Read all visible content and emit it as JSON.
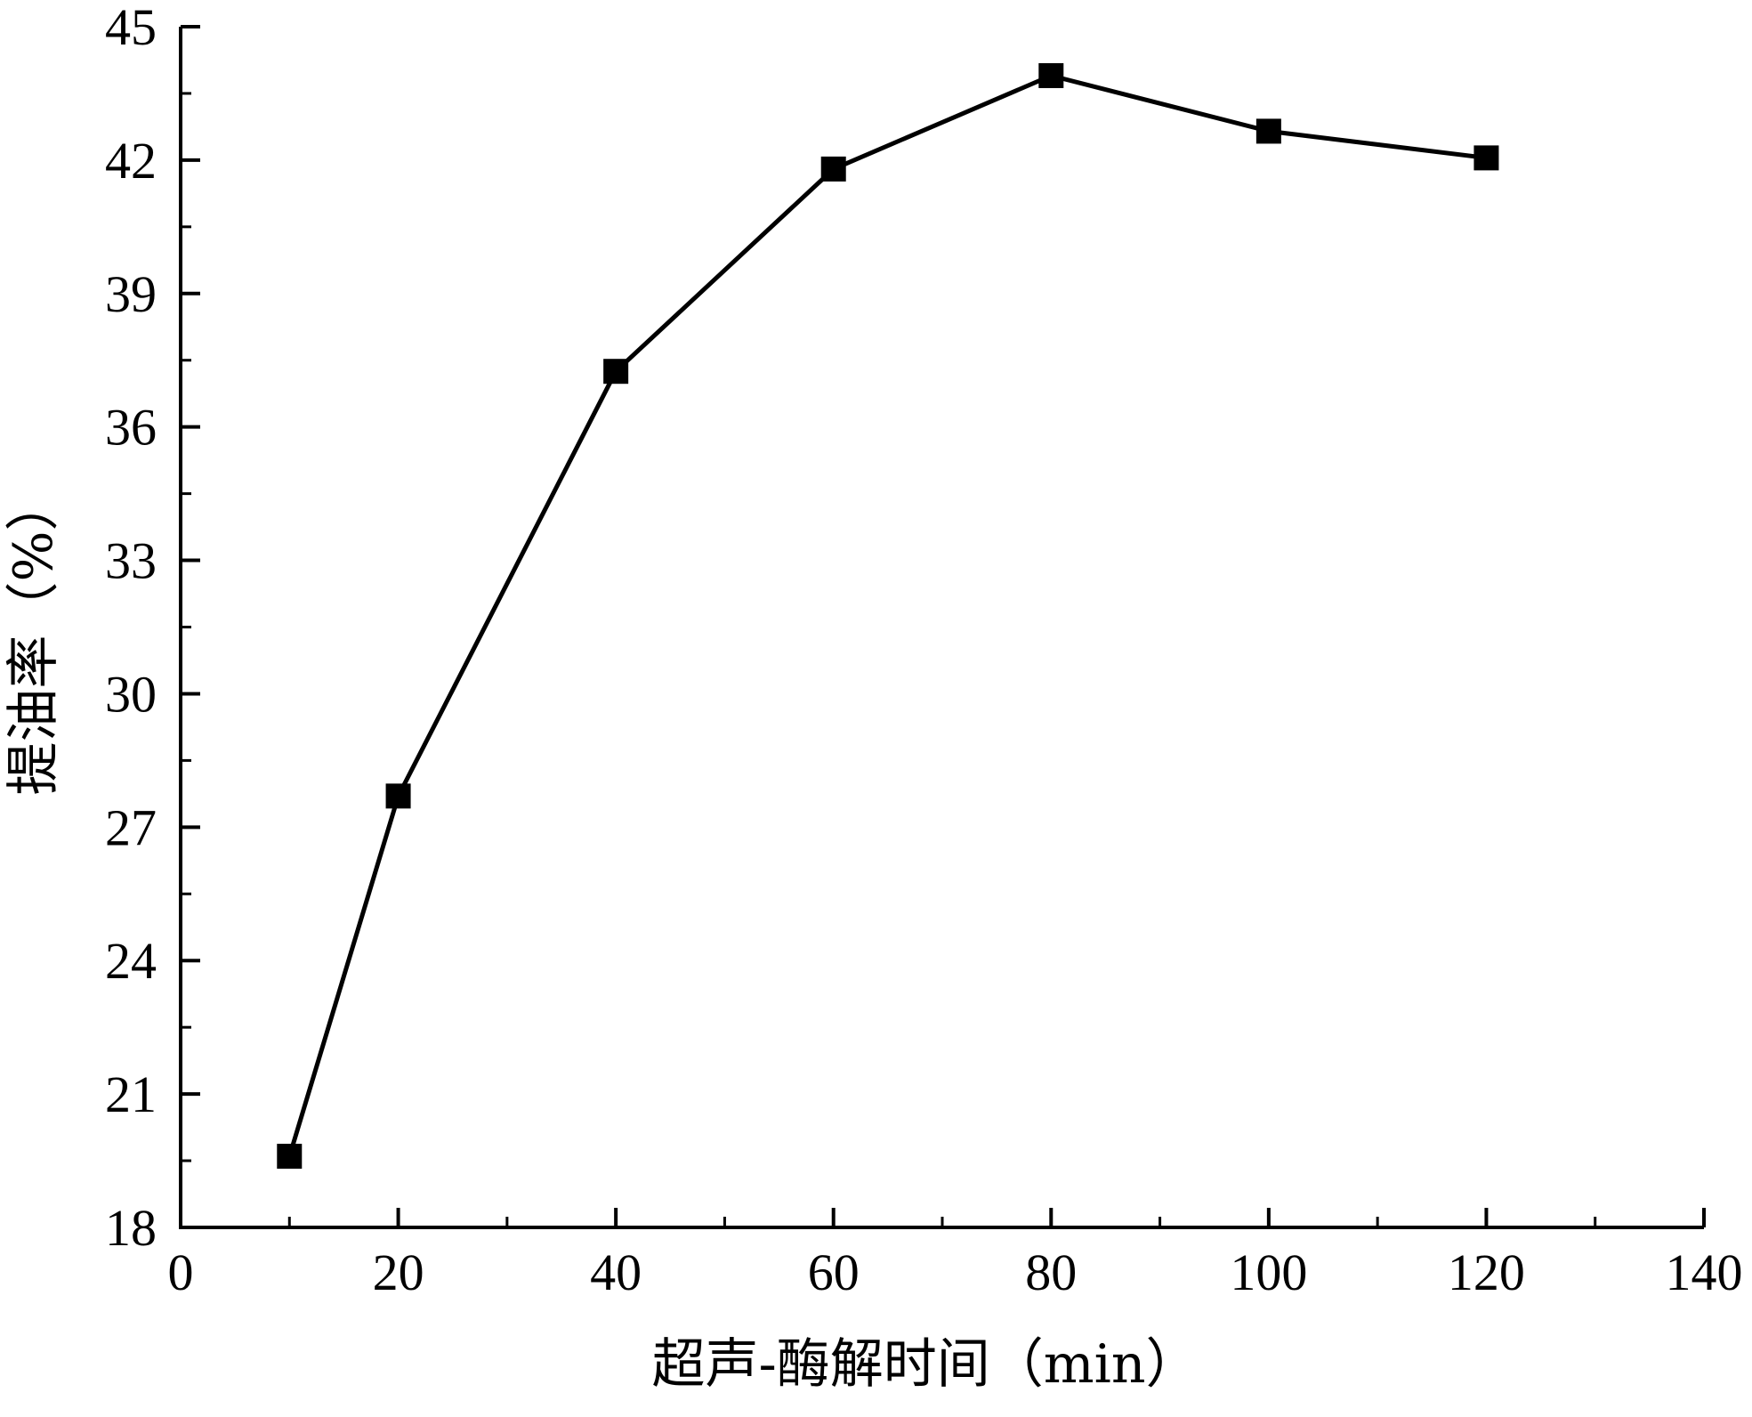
{
  "chart_data": {
    "type": "line",
    "title": "",
    "xlabel": "超声-酶解时间（min）",
    "ylabel": "提油率（%）",
    "xlim": [
      0,
      140
    ],
    "ylim": [
      18,
      45
    ],
    "x_ticks": [
      "0",
      "20",
      "40",
      "60",
      "80",
      "100",
      "120",
      "140"
    ],
    "y_ticks": [
      "18",
      "21",
      "24",
      "27",
      "30",
      "33",
      "36",
      "39",
      "42",
      "45"
    ],
    "grid": false,
    "legend": "none",
    "marker": "filled-square",
    "color": "#000000",
    "series": [
      {
        "x": [
          10,
          20,
          40,
          60,
          80,
          100,
          120
        ],
        "y": [
          19.6,
          27.7,
          37.25,
          41.8,
          43.9,
          42.65,
          42.05
        ]
      }
    ]
  }
}
